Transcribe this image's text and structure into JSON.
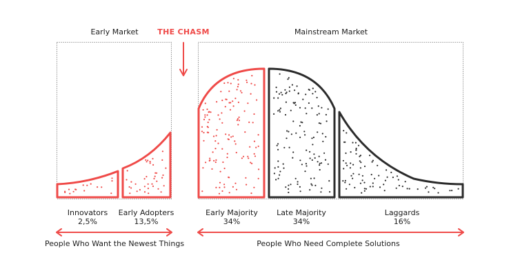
{
  "header": {
    "early_market": "Early Market",
    "chasm": "THE CHASM",
    "mainstream_market": "Mainstream Market"
  },
  "segments": [
    {
      "id": "innovators",
      "label": "Innovators",
      "share": "2,5%",
      "group": "early"
    },
    {
      "id": "early-adopters",
      "label": "Early Adopters",
      "share": "13,5%",
      "group": "early"
    },
    {
      "id": "early-majority",
      "label": "Early Majority",
      "share": "34%",
      "group": "early"
    },
    {
      "id": "late-majority",
      "label": "Late Majority",
      "share": "34%",
      "group": "mainstream"
    },
    {
      "id": "laggards",
      "label": "Laggards",
      "share": "16%",
      "group": "mainstream"
    }
  ],
  "footer": {
    "left": "People Who Want the Newest Things",
    "right": "People Who Need Complete Solutions"
  },
  "colors": {
    "accent": "#ef4a48",
    "ink": "#2b2b2b",
    "text": "#1a1a1a",
    "frame": "#7a7a7a"
  }
}
